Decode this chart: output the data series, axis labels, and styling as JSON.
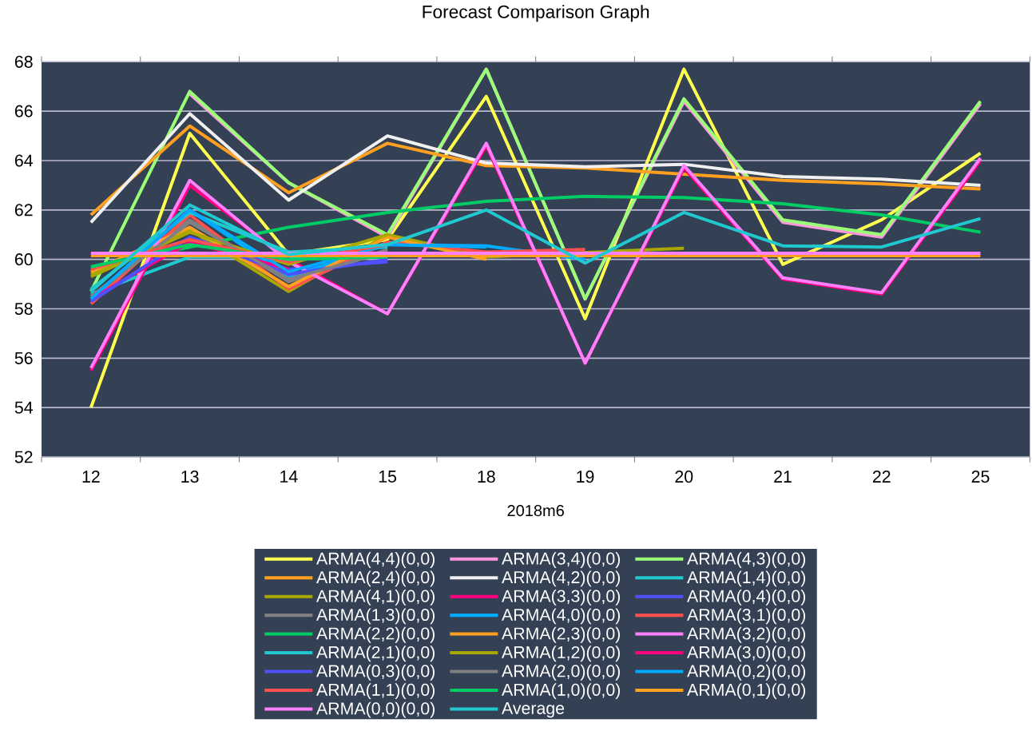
{
  "chart_data": {
    "type": "line",
    "title": "Forecast Comparison Graph",
    "xlabel": "2018m6",
    "categories": [
      "12",
      "13",
      "14",
      "15",
      "18",
      "19",
      "20",
      "21",
      "22",
      "25"
    ],
    "ylim": [
      52,
      68
    ],
    "yticks": [
      52,
      54,
      56,
      58,
      60,
      62,
      64,
      66,
      68
    ],
    "grid": "y",
    "legend": "bottom",
    "marker": "none",
    "line_style": "solid",
    "series": [
      {
        "name": "ARMA(4,4)(0,0)",
        "color": "#ffff50",
        "values": [
          54.0,
          65.1,
          60.2,
          60.8,
          66.6,
          57.6,
          67.7,
          59.8,
          61.6,
          64.3
        ]
      },
      {
        "name": "ARMA(3,4)(0,0)",
        "color": "#ff99dd",
        "values": [
          null,
          66.7,
          63.1,
          60.9,
          67.7,
          58.4,
          66.4,
          61.5,
          60.9,
          66.3
        ]
      },
      {
        "name": "ARMA(4,3)(0,0)",
        "color": "#99ff77",
        "values": [
          58.7,
          66.8,
          63.1,
          61.0,
          67.7,
          58.4,
          66.5,
          61.6,
          61.0,
          66.4
        ]
      },
      {
        "name": "ARMA(2,4)(0,0)",
        "color": "#ffa020",
        "values": [
          61.8,
          65.4,
          62.7,
          64.7,
          63.8,
          63.7,
          63.45,
          63.2,
          63.05,
          62.85
        ]
      },
      {
        "name": "ARMA(4,2)(0,0)",
        "color": "#f0f0f0",
        "values": [
          61.5,
          65.9,
          62.4,
          65.0,
          63.9,
          63.75,
          63.85,
          63.35,
          63.25,
          63.0
        ]
      },
      {
        "name": "ARMA(1,4)(0,0)",
        "color": "#20c8d0",
        "values": [
          58.6,
          60.1,
          60.1,
          60.1,
          null,
          null,
          null,
          null,
          null,
          null
        ]
      },
      {
        "name": "ARMA(4,1)(0,0)",
        "color": "#a8a800",
        "values": [
          59.4,
          61.2,
          58.7,
          61.0,
          60.1,
          null,
          60.45,
          null,
          null,
          null
        ]
      },
      {
        "name": "ARMA(3,3)(0,0)",
        "color": "#ff0080",
        "values": [
          55.5,
          63.0,
          60.0,
          57.8,
          64.6,
          55.8,
          63.7,
          59.2,
          58.6,
          64.0
        ]
      },
      {
        "name": "ARMA(0,4)(0,0)",
        "color": "#5050ff",
        "values": [
          58.3,
          60.9,
          59.6,
          59.9,
          null,
          null,
          null,
          null,
          null,
          null
        ]
      },
      {
        "name": "ARMA(1,3)(0,0)",
        "color": "#808080",
        "values": [
          58.5,
          61.6,
          59.1,
          60.4,
          null,
          null,
          null,
          null,
          null,
          null
        ]
      },
      {
        "name": "ARMA(4,0)(0,0)",
        "color": "#00aaff",
        "values": [
          58.4,
          62.0,
          59.3,
          60.6,
          60.55,
          60.0,
          null,
          null,
          null,
          null
        ]
      },
      {
        "name": "ARMA(3,1)(0,0)",
        "color": "#ff5050",
        "values": [
          58.2,
          61.8,
          58.8,
          60.7,
          60.3,
          60.4,
          null,
          null,
          null,
          null
        ]
      },
      {
        "name": "ARMA(2,2)(0,0)",
        "color": "#00cc66",
        "values": [
          59.7,
          60.5,
          61.3,
          61.9,
          62.35,
          62.55,
          62.5,
          62.25,
          61.8,
          61.1
        ]
      },
      {
        "name": "ARMA(2,3)(0,0)",
        "color": "#ffa020",
        "values": [
          59.5,
          61.3,
          58.9,
          60.9,
          60.0,
          null,
          null,
          null,
          null,
          null
        ]
      },
      {
        "name": "ARMA(3,2)(0,0)",
        "color": "#ff80ff",
        "values": [
          55.6,
          63.2,
          59.9,
          57.8,
          64.7,
          55.8,
          63.8,
          59.25,
          58.65,
          64.1
        ]
      },
      {
        "name": "ARMA(2,1)(0,0)",
        "color": "#20c8d0",
        "values": [
          58.8,
          61.9,
          60.3,
          60.5,
          null,
          null,
          null,
          null,
          null,
          null
        ]
      },
      {
        "name": "ARMA(1,2)(0,0)",
        "color": "#a8a800",
        "values": [
          59.3,
          61.1,
          59.8,
          61.0,
          null,
          null,
          null,
          null,
          null,
          null
        ]
      },
      {
        "name": "ARMA(3,0)(0,0)",
        "color": "#ff0080",
        "values": [
          58.4,
          60.7,
          59.6,
          null,
          null,
          null,
          null,
          null,
          null,
          null
        ]
      },
      {
        "name": "ARMA(0,3)(0,0)",
        "color": "#5050ff",
        "values": [
          58.3,
          60.9,
          59.4,
          60.0,
          null,
          null,
          null,
          null,
          null,
          null
        ]
      },
      {
        "name": "ARMA(2,0)(0,0)",
        "color": "#808080",
        "values": [
          58.5,
          61.5,
          59.2,
          60.3,
          null,
          null,
          null,
          null,
          null,
          null
        ]
      },
      {
        "name": "ARMA(0,2)(0,0)",
        "color": "#00aaff",
        "values": [
          58.4,
          62.0,
          59.5,
          60.6,
          60.5,
          null,
          null,
          null,
          null,
          null
        ]
      },
      {
        "name": "ARMA(1,1)(0,0)",
        "color": "#ff5050",
        "values": [
          59.6,
          60.8,
          59.9,
          60.6,
          null,
          null,
          null,
          null,
          null,
          null
        ]
      },
      {
        "name": "ARMA(1,0)(0,0)",
        "color": "#00cc66",
        "values": [
          59.7,
          60.6,
          60.0,
          60.1,
          null,
          null,
          null,
          null,
          null,
          null
        ]
      },
      {
        "name": "ARMA(0,1)(0,0)",
        "color": "#ffa020",
        "values": [
          60.15,
          60.15,
          60.15,
          60.15,
          60.15,
          60.15,
          60.15,
          60.15,
          60.15,
          60.15
        ]
      },
      {
        "name": "ARMA(0,0)(0,0)",
        "color": "#ff80ff",
        "values": [
          60.25,
          60.25,
          60.25,
          60.25,
          60.25,
          60.25,
          60.25,
          60.25,
          60.25,
          60.25
        ]
      },
      {
        "name": "Average",
        "color": "#20c8d0",
        "values": [
          58.7,
          62.2,
          60.2,
          60.6,
          62.0,
          59.85,
          61.9,
          60.55,
          60.5,
          61.65
        ]
      }
    ]
  }
}
